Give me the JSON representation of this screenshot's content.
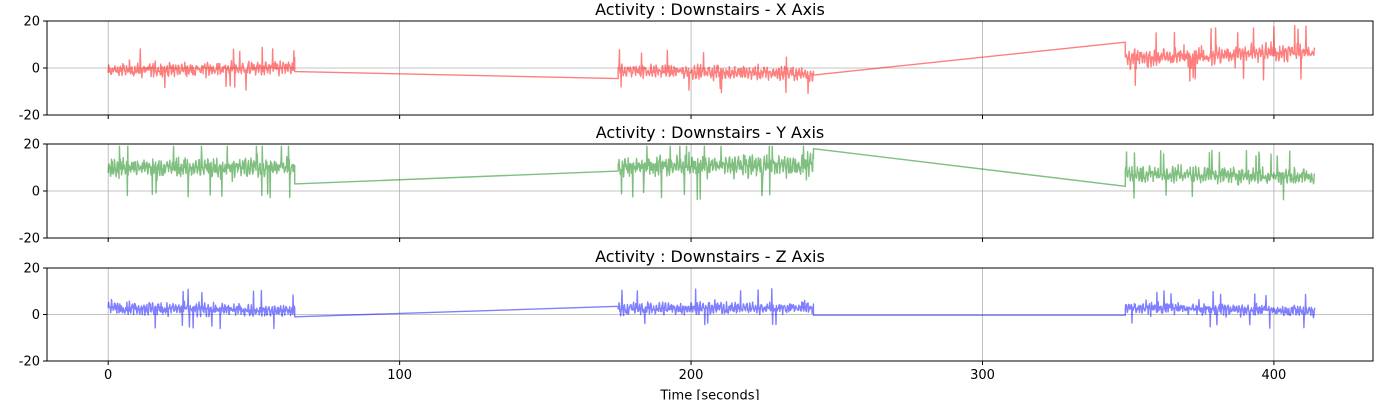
{
  "chart_data": [
    {
      "type": "line",
      "title": "Activity : Downstairs - X Axis",
      "color": "#ff0000",
      "opacity": 0.5,
      "xlim": [
        -21,
        434
      ],
      "ylim": [
        -20,
        20
      ],
      "xticks": [
        0,
        100,
        200,
        300,
        400
      ],
      "yticks": [
        -20,
        0,
        20
      ],
      "grid": true,
      "segments": [
        {
          "x_start": 0,
          "x_end": 64,
          "center_start": -1,
          "center_end": 0,
          "amplitude": 3.6,
          "spikes": 11
        },
        {
          "x_start": 64,
          "x_end": 175,
          "center_start": -1.5,
          "center_end": -4.5,
          "amplitude": 0,
          "spikes": 0
        },
        {
          "x_start": 175,
          "x_end": 242,
          "center_start": -1,
          "center_end": -2.5,
          "amplitude": 3.4,
          "spikes": 11
        },
        {
          "x_start": 242,
          "x_end": 349,
          "center_start": -3,
          "center_end": 11,
          "amplitude": 0,
          "spikes": 0
        },
        {
          "x_start": 349,
          "x_end": 414,
          "center_start": 4,
          "center_end": 7,
          "amplitude": 4.5,
          "spikes": 18
        }
      ]
    },
    {
      "type": "line",
      "title": "Activity : Downstairs - Y Axis",
      "color": "#008000",
      "opacity": 0.5,
      "xlim": [
        -21,
        434
      ],
      "ylim": [
        -20,
        20
      ],
      "xticks": [
        0,
        100,
        200,
        300,
        400
      ],
      "yticks": [
        -20,
        0,
        20
      ],
      "grid": true,
      "segments": [
        {
          "x_start": 0,
          "x_end": 64,
          "center_start": 10,
          "center_end": 10,
          "amplitude": 5,
          "spikes": 19
        },
        {
          "x_start": 64,
          "x_end": 175,
          "center_start": 3,
          "center_end": 8.5,
          "amplitude": 0,
          "spikes": 0
        },
        {
          "x_start": 175,
          "x_end": 242,
          "center_start": 10.5,
          "center_end": 11,
          "amplitude": 5.5,
          "spikes": 19
        },
        {
          "x_start": 242,
          "x_end": 349,
          "center_start": 18,
          "center_end": 2,
          "amplitude": 0,
          "spikes": 0
        },
        {
          "x_start": 349,
          "x_end": 414,
          "center_start": 7.5,
          "center_end": 6,
          "amplitude": 4.2,
          "spikes": 18
        }
      ]
    },
    {
      "type": "line",
      "title": "Activity : Downstairs - Z Axis",
      "xlabel": "Time [seconds]",
      "color": "#0000ff",
      "opacity": 0.5,
      "xlim": [
        -21,
        434
      ],
      "ylim": [
        -20,
        20
      ],
      "xticks": [
        0,
        100,
        200,
        300,
        400
      ],
      "yticks": [
        -20,
        0,
        20
      ],
      "grid": true,
      "segments": [
        {
          "x_start": 0,
          "x_end": 64,
          "center_start": 3,
          "center_end": 1.5,
          "amplitude": 3.3,
          "spikes": 13
        },
        {
          "x_start": 64,
          "x_end": 175,
          "center_start": -1,
          "center_end": 3.5,
          "amplitude": 0,
          "spikes": 0
        },
        {
          "x_start": 175,
          "x_end": 242,
          "center_start": 2.5,
          "center_end": 3,
          "amplitude": 3.2,
          "spikes": 11
        },
        {
          "x_start": 242,
          "x_end": 349,
          "center_start": -0.3,
          "center_end": -0.3,
          "amplitude": 0,
          "spikes": 0
        },
        {
          "x_start": 349,
          "x_end": 414,
          "center_start": 3,
          "center_end": 1.5,
          "amplitude": 3,
          "spikes": 14
        }
      ]
    }
  ]
}
